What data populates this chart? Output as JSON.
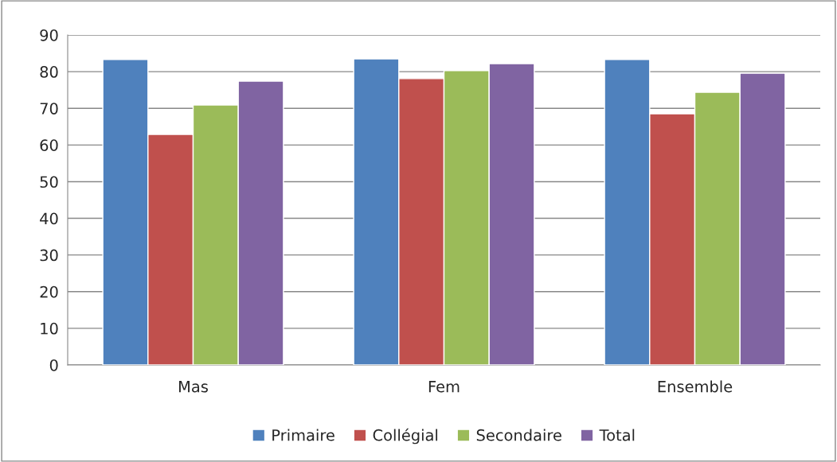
{
  "chart_data": {
    "type": "bar",
    "categories": [
      "Mas",
      "Fem",
      "Ensemble"
    ],
    "series": [
      {
        "name": "Primaire",
        "color": "#4f81bd",
        "values": [
          83.3,
          83.5,
          83.3
        ]
      },
      {
        "name": "Collégial",
        "color": "#c0504d",
        "values": [
          62.9,
          78.1,
          68.5
        ]
      },
      {
        "name": "Secondaire",
        "color": "#9bbb59",
        "values": [
          70.9,
          80.3,
          74.4
        ]
      },
      {
        "name": "Total",
        "color": "#8064a2",
        "values": [
          77.4,
          82.2,
          79.6
        ]
      }
    ],
    "ylim": [
      0,
      90
    ],
    "yticks": [
      0,
      10,
      20,
      30,
      40,
      50,
      60,
      70,
      80,
      90
    ],
    "grid": "y",
    "legend": "bottom"
  }
}
